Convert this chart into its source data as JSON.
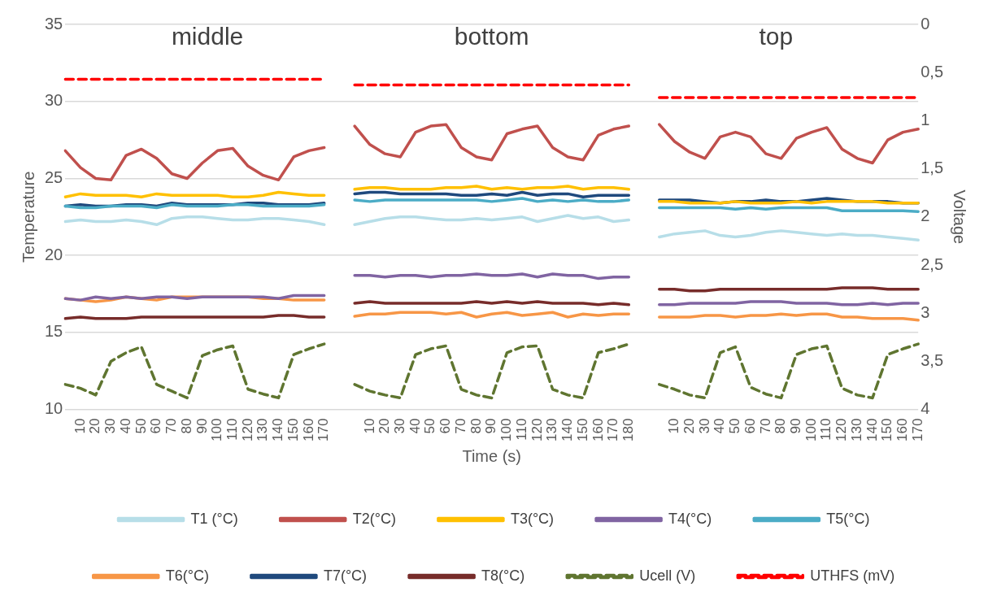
{
  "chart_data": {
    "type": "line",
    "xlabel": "Time (s)",
    "ylabel": "Temperature",
    "y2label": "Voltage",
    "annotations": [
      "middle",
      "bottom",
      "top"
    ],
    "categories": [
      null,
      "10",
      "20",
      "30",
      "40",
      "50",
      "60",
      "70",
      "80",
      "90",
      "100",
      "110",
      "120",
      "130",
      "140",
      "150",
      "160",
      "170",
      null,
      null,
      "10",
      "20",
      "30",
      "40",
      "50",
      "60",
      "70",
      "80",
      "90",
      "100",
      "110",
      "120",
      "130",
      "140",
      "150",
      "160",
      "170",
      "180",
      null,
      null,
      "10",
      "20",
      "30",
      "40",
      "50",
      "60",
      "70",
      "80",
      "90",
      "100",
      "110",
      "120",
      "130",
      "140",
      "150",
      "160",
      "170"
    ],
    "ylim": [
      10,
      35
    ],
    "yticks": [
      10,
      15,
      20,
      25,
      30,
      35
    ],
    "y2lim": [
      4,
      0
    ],
    "y2ticks": [
      {
        "value": 0,
        "label": "0"
      },
      {
        "value": 0.5,
        "label": "0,5"
      },
      {
        "value": 1,
        "label": "1"
      },
      {
        "value": 1.5,
        "label": "1,5"
      },
      {
        "value": 2,
        "label": "2"
      },
      {
        "value": 2.5,
        "label": "2,5"
      },
      {
        "value": 3,
        "label": "3"
      },
      {
        "value": 3.5,
        "label": "3,5"
      },
      {
        "value": 4,
        "label": "4"
      }
    ],
    "grid": "y",
    "legend": "bottom",
    "marker": "none",
    "series": [
      {
        "name": "T1 (°C)",
        "color": "#b7dee8",
        "values": [
          22.2,
          22.3,
          22.2,
          22.2,
          22.3,
          22.2,
          22.0,
          22.4,
          22.5,
          22.5,
          22.4,
          22.3,
          22.3,
          22.4,
          22.4,
          22.3,
          22.2,
          22.0,
          null,
          22.0,
          22.2,
          22.4,
          22.5,
          22.5,
          22.4,
          22.3,
          22.3,
          22.4,
          22.3,
          22.4,
          22.5,
          22.2,
          22.4,
          22.6,
          22.4,
          22.5,
          22.2,
          22.3,
          null,
          21.2,
          21.4,
          21.5,
          21.6,
          21.3,
          21.2,
          21.3,
          21.5,
          21.6,
          21.5,
          21.4,
          21.3,
          21.4,
          21.3,
          21.3,
          21.2,
          21.1,
          21.0
        ]
      },
      {
        "name": "T2(°C)",
        "color": "#c0504d",
        "values": [
          26.8,
          25.7,
          25.0,
          24.9,
          26.5,
          26.9,
          26.3,
          25.3,
          25.0,
          26.0,
          26.8,
          26.95,
          25.8,
          25.2,
          24.9,
          26.4,
          26.8,
          27.0,
          null,
          28.4,
          27.2,
          26.6,
          26.4,
          28.0,
          28.4,
          28.5,
          27.0,
          26.4,
          26.2,
          27.9,
          28.2,
          28.4,
          27.0,
          26.4,
          26.2,
          27.8,
          28.2,
          28.4,
          null,
          28.5,
          27.4,
          26.7,
          26.3,
          27.7,
          28.0,
          27.7,
          26.6,
          26.3,
          27.6,
          28.0,
          28.3,
          26.9,
          26.3,
          26.0,
          27.5,
          28.0,
          28.2
        ]
      },
      {
        "name": "T3(°C)",
        "color": "#ffc000",
        "values": [
          23.8,
          24.0,
          23.9,
          23.9,
          23.9,
          23.8,
          24.0,
          23.9,
          23.9,
          23.9,
          23.9,
          23.8,
          23.8,
          23.9,
          24.1,
          24.0,
          23.9,
          23.9,
          null,
          24.3,
          24.4,
          24.4,
          24.3,
          24.3,
          24.3,
          24.4,
          24.4,
          24.5,
          24.3,
          24.4,
          24.3,
          24.4,
          24.4,
          24.5,
          24.3,
          24.4,
          24.4,
          24.3,
          null,
          23.5,
          23.5,
          23.4,
          23.4,
          23.4,
          23.5,
          23.4,
          23.4,
          23.4,
          23.5,
          23.4,
          23.5,
          23.5,
          23.5,
          23.5,
          23.4,
          23.4,
          23.4
        ]
      },
      {
        "name": "T4(°C)",
        "color": "#8064a2",
        "values": [
          17.2,
          17.1,
          17.3,
          17.2,
          17.3,
          17.2,
          17.3,
          17.3,
          17.2,
          17.3,
          17.3,
          17.3,
          17.3,
          17.3,
          17.2,
          17.4,
          17.4,
          17.4,
          null,
          18.7,
          18.7,
          18.6,
          18.7,
          18.7,
          18.6,
          18.7,
          18.7,
          18.8,
          18.7,
          18.7,
          18.8,
          18.6,
          18.8,
          18.7,
          18.7,
          18.5,
          18.6,
          18.6,
          null,
          16.8,
          16.8,
          16.9,
          16.9,
          16.9,
          16.9,
          17.0,
          17.0,
          17.0,
          16.9,
          16.9,
          16.9,
          16.8,
          16.8,
          16.9,
          16.8,
          16.9,
          16.9
        ]
      },
      {
        "name": "T5(°C)",
        "color": "#4bacc6",
        "values": [
          23.2,
          23.1,
          23.1,
          23.2,
          23.2,
          23.2,
          23.1,
          23.3,
          23.2,
          23.2,
          23.2,
          23.3,
          23.3,
          23.2,
          23.2,
          23.2,
          23.2,
          23.3,
          null,
          23.6,
          23.5,
          23.6,
          23.6,
          23.6,
          23.6,
          23.6,
          23.6,
          23.6,
          23.5,
          23.6,
          23.7,
          23.5,
          23.6,
          23.5,
          23.6,
          23.5,
          23.5,
          23.6,
          null,
          23.1,
          23.1,
          23.1,
          23.1,
          23.1,
          23.0,
          23.1,
          23.0,
          23.1,
          23.1,
          23.1,
          23.1,
          22.9,
          22.9,
          22.9,
          22.9,
          22.9,
          22.85
        ]
      },
      {
        "name": "T6(°C)",
        "color": "#f79646",
        "values": [
          17.2,
          17.1,
          17.0,
          17.1,
          17.3,
          17.2,
          17.1,
          17.3,
          17.3,
          17.3,
          17.3,
          17.3,
          17.3,
          17.2,
          17.2,
          17.1,
          17.1,
          17.1,
          null,
          16.05,
          16.2,
          16.2,
          16.3,
          16.3,
          16.3,
          16.2,
          16.3,
          16.0,
          16.2,
          16.3,
          16.1,
          16.2,
          16.3,
          16.0,
          16.2,
          16.1,
          16.2,
          16.2,
          null,
          16.0,
          16.0,
          16.0,
          16.1,
          16.1,
          16.0,
          16.1,
          16.1,
          16.2,
          16.1,
          16.2,
          16.2,
          16.0,
          16.0,
          15.9,
          15.9,
          15.9,
          15.8
        ]
      },
      {
        "name": "T7(°C)",
        "color": "#1f497d",
        "values": [
          23.2,
          23.3,
          23.2,
          23.2,
          23.3,
          23.3,
          23.2,
          23.4,
          23.3,
          23.3,
          23.3,
          23.3,
          23.4,
          23.4,
          23.3,
          23.3,
          23.3,
          23.4,
          null,
          24.0,
          24.1,
          24.1,
          24.0,
          24.0,
          24.0,
          24.0,
          23.9,
          23.9,
          24.0,
          23.9,
          24.1,
          23.9,
          24.0,
          24.0,
          23.8,
          23.9,
          23.9,
          23.9,
          null,
          23.6,
          23.6,
          23.6,
          23.5,
          23.4,
          23.5,
          23.5,
          23.6,
          23.5,
          23.5,
          23.6,
          23.7,
          23.6,
          23.5,
          23.5,
          23.5,
          23.4,
          23.4
        ]
      },
      {
        "name": "T8(°C)",
        "color": "#772c2a",
        "values": [
          15.9,
          16.0,
          15.9,
          15.9,
          15.9,
          16.0,
          16.0,
          16.0,
          16.0,
          16.0,
          16.0,
          16.0,
          16.0,
          16.0,
          16.1,
          16.1,
          16.0,
          16.0,
          null,
          16.9,
          17.0,
          16.9,
          16.9,
          16.9,
          16.9,
          16.9,
          16.9,
          17.0,
          16.9,
          17.0,
          16.9,
          17.0,
          16.9,
          16.9,
          16.9,
          16.8,
          16.9,
          16.8,
          null,
          17.8,
          17.8,
          17.7,
          17.7,
          17.8,
          17.8,
          17.8,
          17.8,
          17.8,
          17.8,
          17.8,
          17.8,
          17.9,
          17.9,
          17.9,
          17.8,
          17.8,
          17.8
        ]
      },
      {
        "name": "Ucell (V)",
        "color": "#5f7530",
        "axis": "y2",
        "line_style": "dashed",
        "values": [
          3.74,
          3.78,
          3.85,
          3.5,
          3.41,
          3.35,
          3.74,
          3.81,
          3.88,
          3.44,
          3.38,
          3.34,
          3.79,
          3.84,
          3.88,
          3.43,
          3.37,
          3.32,
          null,
          3.74,
          3.81,
          3.85,
          3.88,
          3.43,
          3.37,
          3.34,
          3.79,
          3.85,
          3.88,
          3.41,
          3.35,
          3.34,
          3.79,
          3.85,
          3.88,
          3.41,
          3.37,
          3.32,
          null,
          3.74,
          3.79,
          3.85,
          3.88,
          3.41,
          3.35,
          3.77,
          3.84,
          3.88,
          3.43,
          3.37,
          3.34,
          3.78,
          3.85,
          3.88,
          3.43,
          3.37,
          3.32
        ]
      },
      {
        "name": "UTHFS (mV)",
        "color": "#ff0000",
        "axis": "y2",
        "line_style": "dashed",
        "values": [
          0.57,
          0.57,
          0.57,
          0.57,
          0.57,
          0.57,
          0.57,
          0.57,
          0.57,
          0.57,
          0.57,
          0.57,
          0.57,
          0.57,
          0.57,
          0.57,
          0.57,
          0.57,
          null,
          0.63,
          0.63,
          0.63,
          0.63,
          0.63,
          0.63,
          0.63,
          0.63,
          0.63,
          0.63,
          0.63,
          0.63,
          0.63,
          0.63,
          0.63,
          0.63,
          0.63,
          0.63,
          0.63,
          null,
          0.76,
          0.76,
          0.76,
          0.76,
          0.76,
          0.76,
          0.76,
          0.76,
          0.76,
          0.76,
          0.76,
          0.76,
          0.76,
          0.76,
          0.76,
          0.76,
          0.76,
          0.76
        ]
      }
    ]
  }
}
